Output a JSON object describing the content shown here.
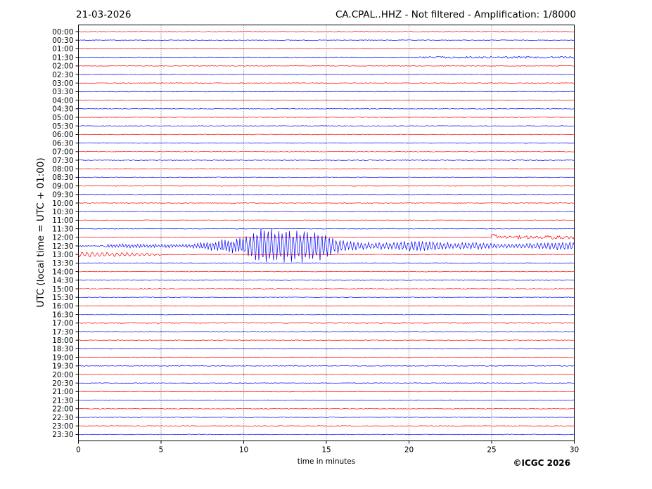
{
  "header": {
    "date": "21-03-2026",
    "station": "CA.CPAL..HHZ - Not filtered - Amplification: 1/8000"
  },
  "footer": {
    "copyright": "©ICGC 2026"
  },
  "chart_data": {
    "type": "line",
    "title": "CA.CPAL..HHZ - Not filtered - Amplification: 1/8000",
    "xlabel": "time in minutes",
    "ylabel": "UTC (local time = UTC + 01:00)",
    "xlim": [
      0,
      30
    ],
    "x_ticks": [
      0,
      5,
      10,
      15,
      20,
      25,
      30
    ],
    "grid": "vertical dotted at x ticks",
    "trace_colors": [
      "#ff0000",
      "#0000ff"
    ],
    "row_labels": [
      "00:00",
      "00:30",
      "01:00",
      "01:30",
      "02:00",
      "02:30",
      "03:00",
      "03:30",
      "04:00",
      "04:30",
      "05:00",
      "05:30",
      "06:00",
      "06:30",
      "07:00",
      "07:30",
      "08:00",
      "08:30",
      "09:00",
      "09:30",
      "10:00",
      "10:30",
      "11:00",
      "11:30",
      "12:00",
      "12:30",
      "13:00",
      "13:30",
      "14:00",
      "14:30",
      "15:00",
      "15:30",
      "16:00",
      "16:30",
      "17:00",
      "17:30",
      "18:00",
      "18:30",
      "19:00",
      "19:30",
      "20:00",
      "20:30",
      "21:00",
      "21:30",
      "22:00",
      "22:30",
      "23:00",
      "23:30"
    ],
    "events": [
      {
        "row": "12:30",
        "description": "large earthquake wave train",
        "start_min": 1.6,
        "peak_start_min": 10.0,
        "peak_end_min": 16.0,
        "end_min": 30,
        "max_amplitude_rows": 2.1
      },
      {
        "row": "12:00",
        "description": "increased noise",
        "start_min": 25.0,
        "end_min": 30
      },
      {
        "row": "13:00",
        "description": "moderate oscillation",
        "start_min": 0,
        "end_min": 5
      },
      {
        "row": "01:30",
        "description": "small noise",
        "start_min": 20.5,
        "end_min": 30
      }
    ]
  }
}
